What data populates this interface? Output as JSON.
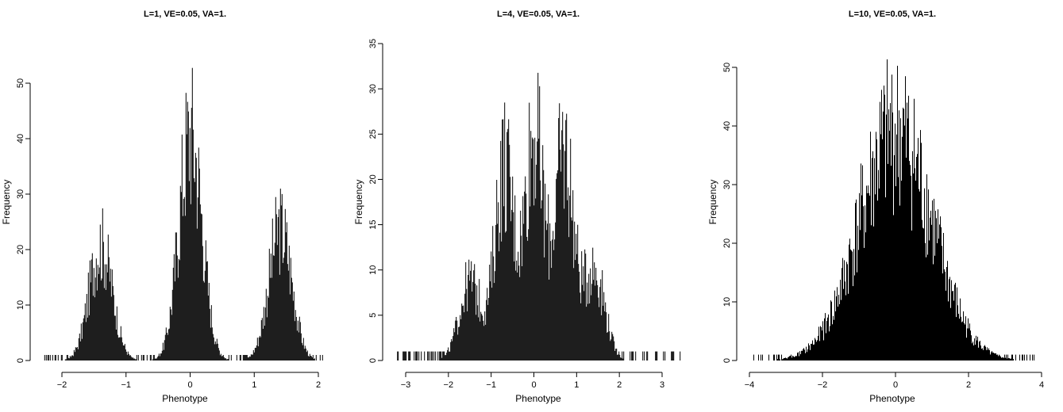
{
  "chart_data": [
    {
      "type": "bar",
      "title": "L=1, VE=0.05, VA=1.",
      "xlabel": "Phenotype",
      "ylabel": "Frequency",
      "xlim": [
        -2.3,
        2.1
      ],
      "ylim": [
        0,
        57
      ],
      "xticks": [
        -2,
        -1,
        0,
        1,
        2
      ],
      "yticks": [
        0,
        10,
        20,
        30,
        40,
        50
      ],
      "components": [
        {
          "mean": -1.4,
          "sd": 0.18,
          "peak": 29
        },
        {
          "mean": 0.0,
          "sd": 0.18,
          "peak": 57
        },
        {
          "mean": 1.4,
          "sd": 0.18,
          "peak": 33
        }
      ],
      "grid": false
    },
    {
      "type": "bar",
      "title": "L=4, VE=0.05, VA=1.",
      "xlabel": "Phenotype",
      "ylabel": "Frequency",
      "xlim": [
        -3.2,
        3.5
      ],
      "ylim": [
        0,
        35
      ],
      "xticks": [
        -3,
        -2,
        -1,
        0,
        1,
        2,
        3
      ],
      "yticks": [
        0,
        5,
        10,
        15,
        20,
        25,
        30,
        35
      ],
      "components": [
        {
          "mean": -1.5,
          "sd": 0.25,
          "peak": 12
        },
        {
          "mean": -0.7,
          "sd": 0.22,
          "peak": 30
        },
        {
          "mean": 0.0,
          "sd": 0.22,
          "peak": 35
        },
        {
          "mean": 0.7,
          "sd": 0.22,
          "peak": 32
        },
        {
          "mean": 1.4,
          "sd": 0.25,
          "peak": 14
        }
      ],
      "grid": false
    },
    {
      "type": "bar",
      "title": "L=10, VE=0.05, VA=1.",
      "xlabel": "Phenotype",
      "ylabel": "Frequency",
      "xlim": [
        -4,
        3.8
      ],
      "ylim": [
        0,
        54
      ],
      "xticks": [
        -4,
        -2,
        0,
        2,
        4
      ],
      "yticks": [
        0,
        10,
        20,
        30,
        40,
        50
      ],
      "components": [
        {
          "mean": 0.0,
          "sd": 1.0,
          "peak": 54
        }
      ],
      "grid": false
    }
  ]
}
